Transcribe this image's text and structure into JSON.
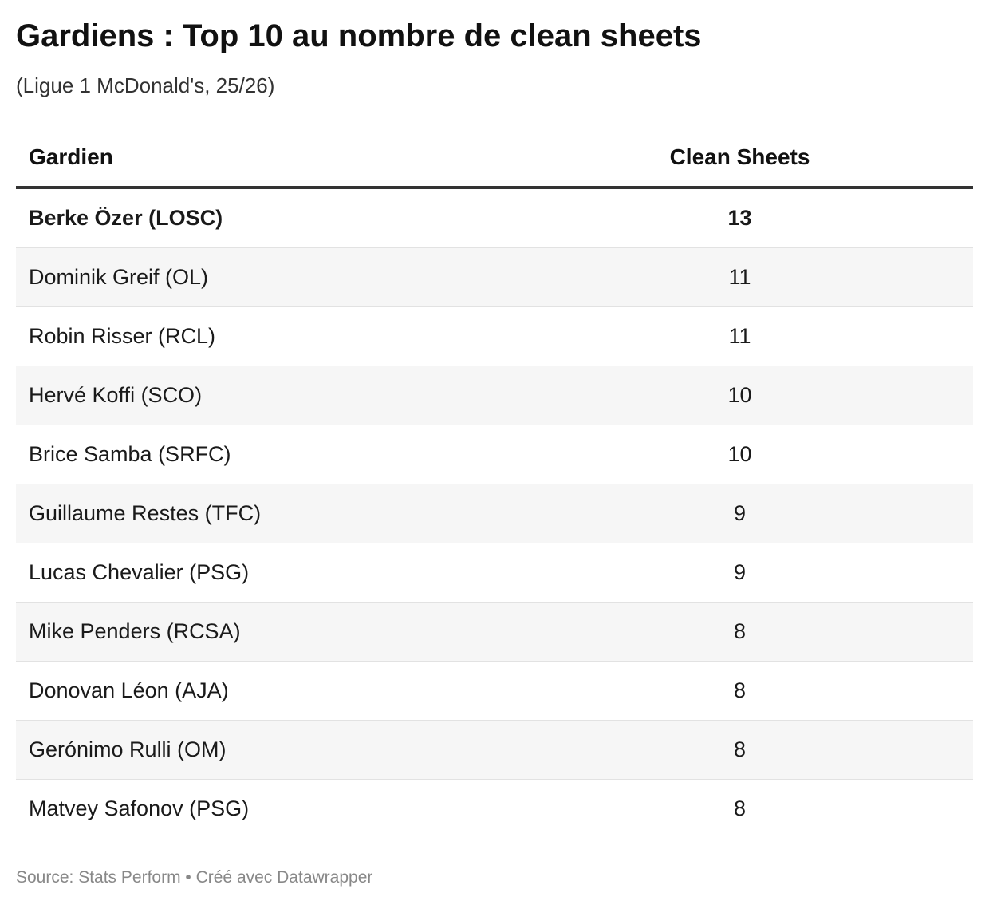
{
  "title": "Gardiens : Top 10 au nombre de clean sheets",
  "subtitle": "(Ligue 1 McDonald's, 25/26)",
  "columns": {
    "name": "Gardien",
    "value": "Clean Sheets"
  },
  "rows": [
    {
      "name": "Berke Özer (LOSC)",
      "value": "13",
      "bold": true
    },
    {
      "name": "Dominik Greif (OL)",
      "value": "11",
      "bold": false
    },
    {
      "name": "Robin Risser (RCL)",
      "value": "11",
      "bold": false
    },
    {
      "name": "Hervé Koffi (SCO)",
      "value": "10",
      "bold": false
    },
    {
      "name": "Brice Samba (SRFC)",
      "value": "10",
      "bold": false
    },
    {
      "name": "Guillaume Restes (TFC)",
      "value": "9",
      "bold": false
    },
    {
      "name": "Lucas Chevalier (PSG)",
      "value": "9",
      "bold": false
    },
    {
      "name": "Mike Penders (RCSA)",
      "value": "8",
      "bold": false
    },
    {
      "name": "Donovan Léon (AJA)",
      "value": "8",
      "bold": false
    },
    {
      "name": "Gerónimo Rulli (OM)",
      "value": "8",
      "bold": false
    },
    {
      "name": "Matvey Safonov (PSG)",
      "value": "8",
      "bold": false
    }
  ],
  "footer": "Source: Stats Perform • Créé avec Datawrapper",
  "chart_data": {
    "type": "table",
    "title": "Gardiens : Top 10 au nombre de clean sheets",
    "subtitle": "(Ligue 1 McDonald's, 25/26)",
    "columns": [
      "Gardien",
      "Clean Sheets"
    ],
    "categories": [
      "Berke Özer (LOSC)",
      "Dominik Greif (OL)",
      "Robin Risser (RCL)",
      "Hervé Koffi (SCO)",
      "Brice Samba (SRFC)",
      "Guillaume Restes (TFC)",
      "Lucas Chevalier (PSG)",
      "Mike Penders (RCSA)",
      "Donovan Léon (AJA)",
      "Gerónimo Rulli (OM)",
      "Matvey Safonov (PSG)"
    ],
    "values": [
      13,
      11,
      11,
      10,
      10,
      9,
      9,
      8,
      8,
      8,
      8
    ]
  }
}
